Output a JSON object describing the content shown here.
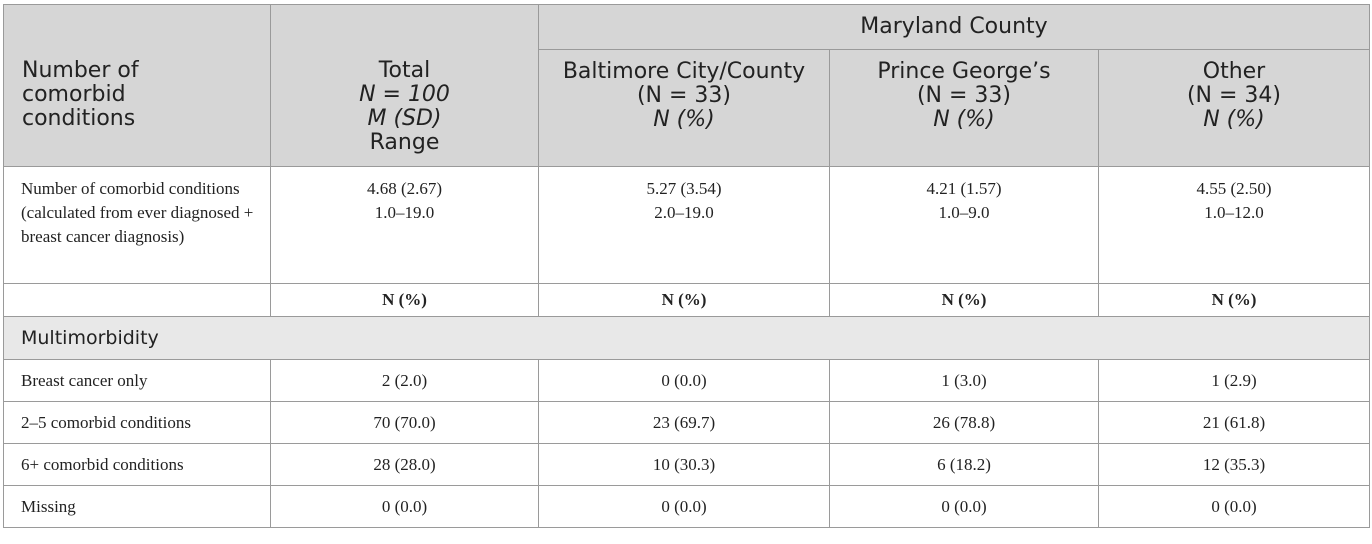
{
  "header": {
    "row_label": [
      "Number of",
      "comorbid",
      "conditions"
    ],
    "group_label": "Maryland County",
    "columns": [
      {
        "lines": [
          "Total",
          "N = 100",
          "M (SD)",
          "Range"
        ]
      },
      {
        "lines": [
          "Baltimore City/County",
          "(N = 33)",
          "N (%)"
        ]
      },
      {
        "lines": [
          "Prince George’s",
          "(N = 33)",
          "N (%)"
        ]
      },
      {
        "lines": [
          "Other",
          "(N = 34)",
          "N (%)"
        ]
      }
    ]
  },
  "comorbid_row": {
    "label": "Number of comorbid conditions (calculated from ever diagnosed + breast cancer diagnosis)",
    "cells": [
      {
        "mean": "4.68 (2.67)",
        "range": "1.0–19.0"
      },
      {
        "mean": "5.27 (3.54)",
        "range": "2.0–19.0"
      },
      {
        "mean": "4.21 (1.57)",
        "range": "1.0–9.0"
      },
      {
        "mean": "4.55 (2.50)",
        "range": "1.0–12.0"
      }
    ]
  },
  "npct_row": {
    "label": "",
    "cells": [
      "N (%)",
      "N (%)",
      "N (%)",
      "N (%)"
    ]
  },
  "section": {
    "label": "Multimorbidity"
  },
  "rows": [
    {
      "label": "Breast cancer only",
      "values": [
        "2 (2.0)",
        "0 (0.0)",
        "1 (3.0)",
        "1 (2.9)"
      ]
    },
    {
      "label": "2–5 comorbid conditions",
      "values": [
        "70 (70.0)",
        "23 (69.7)",
        "26 (78.8)",
        "21 (61.8)"
      ]
    },
    {
      "label": "6+ comorbid conditions",
      "values": [
        "28 (28.0)",
        "10 (30.3)",
        "6 (18.2)",
        "12 (35.3)"
      ]
    },
    {
      "label": "Missing",
      "values": [
        "0 (0.0)",
        "0 (0.0)",
        "0 (0.0)",
        "0 (0.0)"
      ]
    }
  ]
}
